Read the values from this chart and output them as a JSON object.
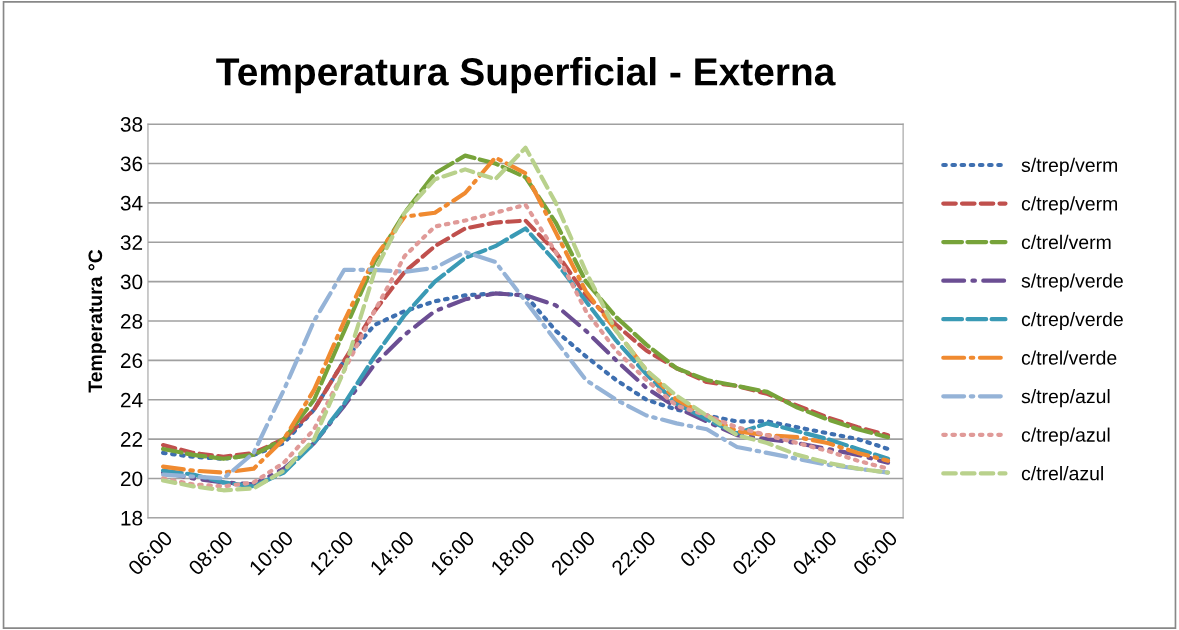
{
  "chart_data": {
    "type": "line",
    "title": "Temperatura Superficial - Externa",
    "ylabel": "Temperatura °C",
    "categories": [
      "06:00",
      null,
      "08:00",
      null,
      "10:00",
      null,
      "12:00",
      null,
      "14:00",
      null,
      "16:00",
      null,
      "18:00",
      null,
      "20:00",
      null,
      "22:00",
      null,
      "0:00",
      null,
      "02:00",
      null,
      "04:00",
      null,
      "06:00"
    ],
    "ylim": [
      18,
      38
    ],
    "yticks": [
      18,
      20,
      22,
      24,
      26,
      28,
      30,
      32,
      34,
      36,
      38
    ],
    "grid": "y",
    "legend": "right",
    "marker": "none",
    "series": [
      {
        "name": "s/trep/verm",
        "color": "#3e6fb0",
        "line_style": "dotted",
        "values": [
          21.3,
          21.1,
          21.0,
          21.2,
          21.8,
          23.5,
          26.0,
          27.8,
          28.5,
          29.0,
          29.3,
          29.4,
          29.3,
          27.5,
          26.2,
          25.0,
          24.0,
          23.5,
          23.2,
          22.9,
          22.9,
          22.6,
          22.3,
          22.0,
          21.5
        ]
      },
      {
        "name": "c/trep/verm",
        "color": "#c0504d",
        "line_style": "dashed",
        "values": [
          21.7,
          21.3,
          21.1,
          21.3,
          22.0,
          23.5,
          26.0,
          28.5,
          30.5,
          31.8,
          32.7,
          33.0,
          33.1,
          31.5,
          29.3,
          27.8,
          26.5,
          25.6,
          24.9,
          24.7,
          24.3,
          23.7,
          23.1,
          22.6,
          22.2
        ]
      },
      {
        "name": "c/trel/verm",
        "color": "#77a33a",
        "line_style": "long_dash",
        "values": [
          21.5,
          21.2,
          21.0,
          21.2,
          22.0,
          24.0,
          27.5,
          31.0,
          33.5,
          35.5,
          36.4,
          36.0,
          35.3,
          33.0,
          30.0,
          28.2,
          26.8,
          25.6,
          25.0,
          24.7,
          24.4,
          23.6,
          23.0,
          22.5,
          22.1
        ]
      },
      {
        "name": "s/trep/verde",
        "color": "#6b4e93",
        "line_style": "dash_dot",
        "values": [
          20.3,
          20.0,
          19.8,
          19.7,
          20.5,
          21.8,
          23.7,
          25.8,
          27.3,
          28.5,
          29.1,
          29.4,
          29.3,
          28.8,
          27.5,
          26.0,
          24.6,
          23.6,
          22.9,
          22.2,
          22.0,
          21.8,
          21.5,
          21.2,
          20.8
        ]
      },
      {
        "name": "c/trep/verde",
        "color": "#3a9ab5",
        "line_style": "long_dash",
        "values": [
          20.4,
          20.2,
          19.8,
          19.6,
          20.3,
          21.8,
          23.8,
          26.2,
          28.3,
          30.0,
          31.2,
          31.8,
          32.7,
          31.0,
          29.0,
          27.0,
          25.3,
          23.8,
          23.0,
          22.3,
          22.8,
          22.4,
          22.0,
          21.5,
          21.0
        ]
      },
      {
        "name": "c/trel/verde",
        "color": "#f08a30",
        "line_style": "long_dash_dot",
        "values": [
          20.6,
          20.4,
          20.3,
          20.5,
          22.0,
          24.5,
          28.0,
          31.2,
          33.3,
          33.5,
          34.5,
          36.3,
          35.5,
          32.5,
          29.5,
          27.5,
          25.5,
          24.0,
          23.2,
          22.4,
          22.2,
          22.1,
          21.8,
          21.3,
          20.9
        ]
      },
      {
        "name": "s/trep/azul",
        "color": "#95b3d7",
        "line_style": "long_dash_dot",
        "values": [
          20.2,
          20.1,
          20.0,
          21.3,
          24.5,
          28.0,
          30.6,
          30.6,
          30.5,
          30.7,
          31.5,
          31.0,
          29.0,
          27.0,
          25.0,
          24.0,
          23.2,
          22.8,
          22.5,
          21.6,
          21.3,
          21.0,
          20.7,
          20.5,
          20.3
        ]
      },
      {
        "name": "c/trep/azul",
        "color": "#e09a98",
        "line_style": "dotted",
        "values": [
          20.0,
          19.7,
          19.6,
          19.8,
          20.8,
          22.5,
          25.5,
          28.5,
          31.3,
          32.8,
          33.1,
          33.5,
          33.9,
          31.5,
          28.5,
          26.5,
          25.0,
          23.7,
          23.2,
          22.6,
          22.2,
          21.8,
          21.4,
          20.9,
          20.5
        ]
      },
      {
        "name": "c/trel/azul",
        "color": "#b9d18c",
        "line_style": "dashed",
        "values": [
          19.9,
          19.6,
          19.4,
          19.5,
          20.4,
          22.0,
          25.5,
          30.5,
          33.5,
          35.2,
          35.7,
          35.2,
          36.8,
          34.0,
          30.5,
          27.5,
          25.5,
          24.2,
          23.2,
          22.2,
          21.8,
          21.2,
          20.8,
          20.5,
          20.3
        ]
      }
    ]
  }
}
